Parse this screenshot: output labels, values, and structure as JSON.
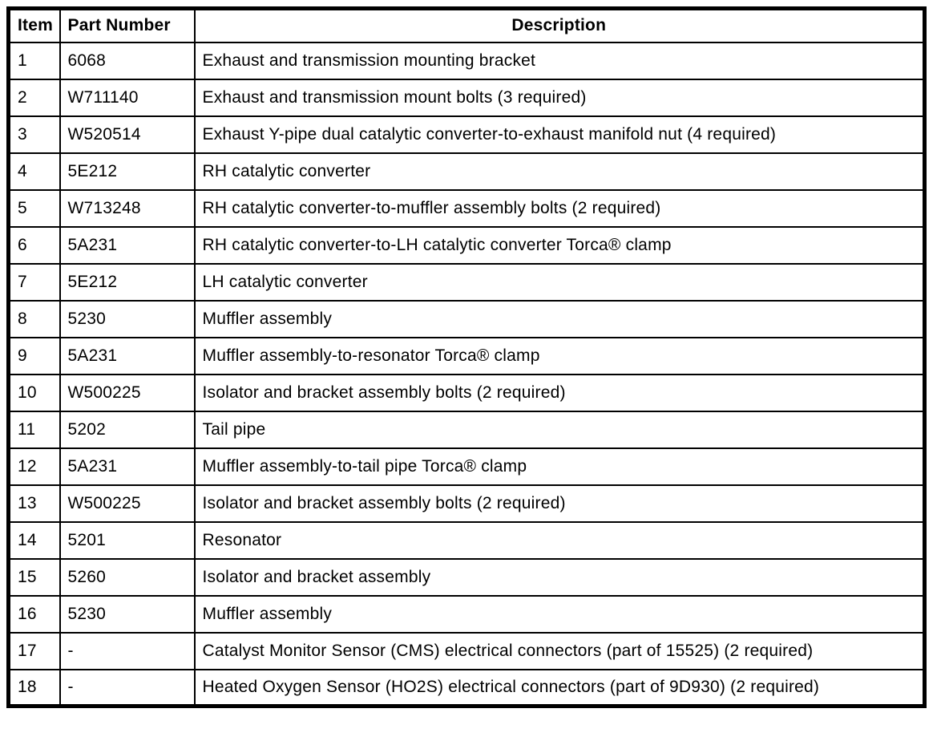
{
  "colors": {
    "background": "#ffffff",
    "border": "#000000",
    "text": "#000000"
  },
  "table": {
    "headers": [
      "Item",
      "Part Number",
      "Description"
    ],
    "rows": [
      {
        "item": "1",
        "part_number": "6068",
        "description": "Exhaust and transmission mounting bracket"
      },
      {
        "item": "2",
        "part_number": "W711140",
        "description": "Exhaust and transmission mount bolts (3 required)"
      },
      {
        "item": "3",
        "part_number": "W520514",
        "description": "Exhaust Y-pipe dual catalytic converter-to-exhaust manifold nut (4 required)"
      },
      {
        "item": "4",
        "part_number": "5E212",
        "description": "RH catalytic converter"
      },
      {
        "item": "5",
        "part_number": "W713248",
        "description": "RH catalytic converter-to-muffler assembly bolts (2 required)"
      },
      {
        "item": "6",
        "part_number": "5A231",
        "description": "RH catalytic converter-to-LH catalytic converter Torca® clamp"
      },
      {
        "item": "7",
        "part_number": "5E212",
        "description": "LH catalytic converter"
      },
      {
        "item": "8",
        "part_number": "5230",
        "description": "Muffler assembly"
      },
      {
        "item": "9",
        "part_number": "5A231",
        "description": "Muffler assembly-to-resonator Torca® clamp"
      },
      {
        "item": "10",
        "part_number": "W500225",
        "description": "Isolator and bracket assembly bolts (2 required)"
      },
      {
        "item": "11",
        "part_number": "5202",
        "description": "Tail pipe"
      },
      {
        "item": "12",
        "part_number": "5A231",
        "description": "Muffler assembly-to-tail pipe Torca® clamp"
      },
      {
        "item": "13",
        "part_number": "W500225",
        "description": "Isolator and bracket assembly bolts (2 required)"
      },
      {
        "item": "14",
        "part_number": "5201",
        "description": "Resonator"
      },
      {
        "item": "15",
        "part_number": "5260",
        "description": "Isolator and bracket assembly"
      },
      {
        "item": "16",
        "part_number": "5230",
        "description": "Muffler assembly"
      },
      {
        "item": "17",
        "part_number": "-",
        "description": "Catalyst Monitor Sensor (CMS) electrical connectors (part of 15525) (2 required)"
      },
      {
        "item": "18",
        "part_number": "-",
        "description": "Heated Oxygen Sensor (HO2S) electrical connectors (part of 9D930) (2 required)"
      }
    ]
  }
}
